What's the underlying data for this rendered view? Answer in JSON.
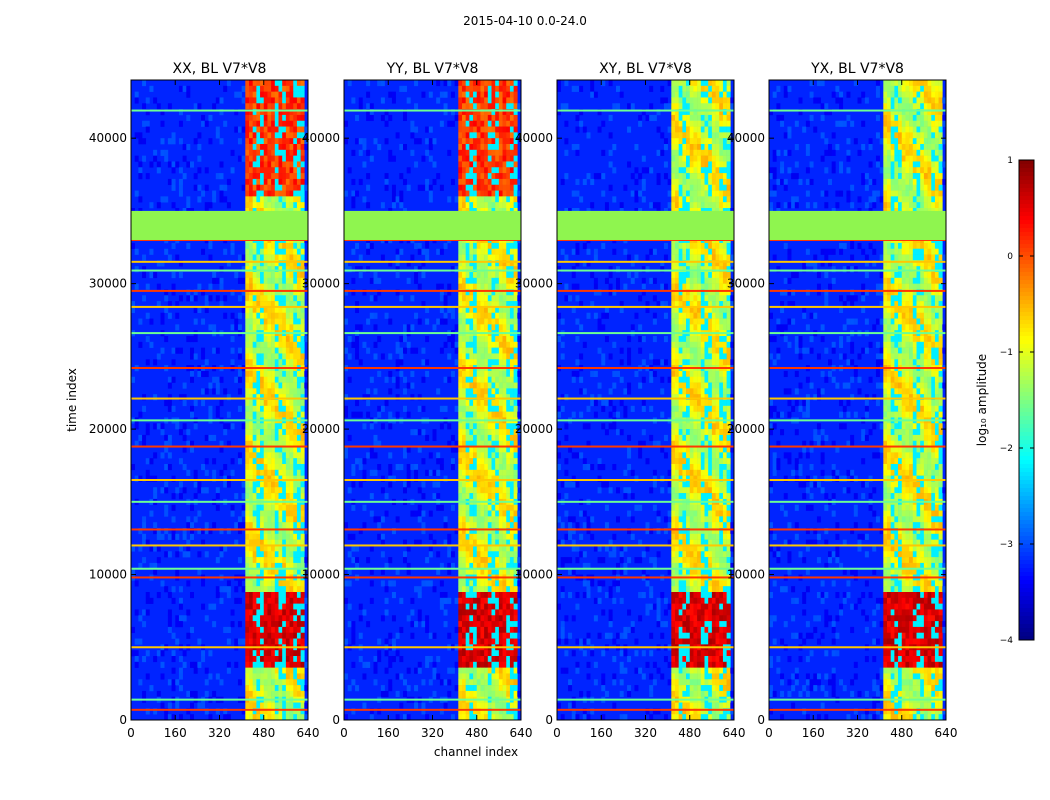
{
  "chart_data": {
    "type": "heatmap",
    "suptitle": "2015-04-10 0.0-24.0",
    "xlabel": "channel index",
    "ylabel": "time index",
    "xlim": [
      0,
      640
    ],
    "ylim": [
      0,
      44000
    ],
    "xticks": [
      0,
      160,
      320,
      480,
      640
    ],
    "yticks": [
      0,
      10000,
      20000,
      30000,
      40000
    ],
    "xtick_labels": [
      "0",
      "160",
      "320",
      "480",
      "640"
    ],
    "ytick_labels": [
      "0",
      "10000",
      "20000",
      "30000",
      "40000"
    ],
    "panels": [
      {
        "title": "XX, BL V7*V8"
      },
      {
        "title": "YY, BL V7*V8"
      },
      {
        "title": "XY, BL V7*V8"
      },
      {
        "title": "YX, BL V7*V8"
      }
    ],
    "colorbar": {
      "label": "log₁₀ amplitude",
      "range": [
        -4,
        1
      ],
      "ticks": [
        1,
        0,
        -1,
        -2,
        -3,
        -4
      ],
      "tick_labels": [
        "1",
        "0",
        "−1",
        "−2",
        "−3",
        "−4"
      ],
      "colormap": "jet"
    },
    "features": {
      "flagged_time_band": [
        33000,
        35000
      ],
      "flagged_value": -1.3,
      "bright_channel_range": [
        410,
        630
      ],
      "strong_time_range": [
        3500,
        9000
      ],
      "background_value": -3.2,
      "horizontal_line_rows": [
        700,
        1400,
        5000,
        9800,
        10400,
        12000,
        13100,
        15000,
        16500,
        18800,
        20600,
        22100,
        24200,
        26600,
        28400,
        29500,
        30900,
        31500,
        33000,
        41900
      ]
    }
  },
  "colors": {
    "jet_dark_blue": "#00007f",
    "jet_blue": "#0000ff",
    "jet_cyan": "#00ffff",
    "jet_yellow": "#ffff00",
    "jet_red": "#ff0000",
    "jet_dark_red": "#7f0000",
    "flagged": "#8ff54f"
  }
}
